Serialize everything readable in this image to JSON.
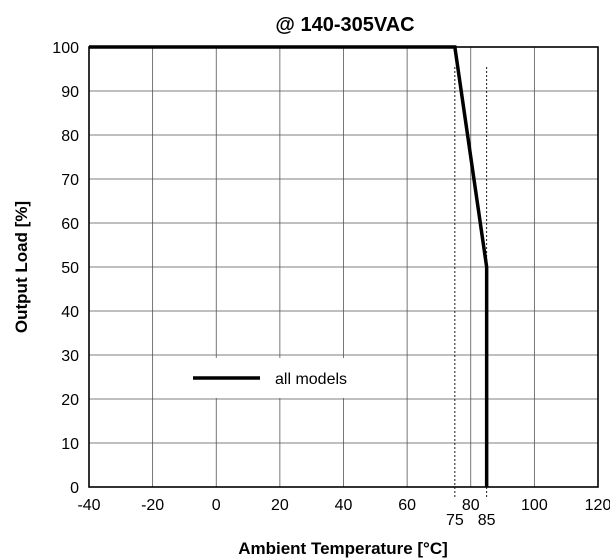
{
  "chart_data": {
    "type": "line",
    "title": "@ 140-305VAC",
    "xlabel": "Ambient Temperature [°C]",
    "ylabel": "Output Load [%]",
    "xlim": [
      -40,
      120
    ],
    "ylim": [
      0,
      100
    ],
    "xticks": [
      -40,
      -20,
      0,
      20,
      40,
      60,
      80,
      100,
      120
    ],
    "yticks": [
      0,
      10,
      20,
      30,
      40,
      50,
      60,
      70,
      80,
      90,
      100
    ],
    "grid": true,
    "series": [
      {
        "name": "all models",
        "color": "#000000",
        "x": [
          -40,
          75,
          85,
          85
        ],
        "y": [
          100,
          100,
          50,
          0
        ]
      }
    ],
    "marker_ticks": [
      75,
      85
    ],
    "legend": {
      "position": "center-left",
      "label": "all models"
    }
  }
}
